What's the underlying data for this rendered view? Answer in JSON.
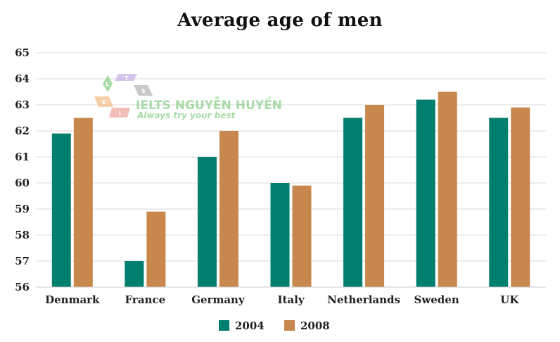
{
  "chart_data": {
    "type": "bar",
    "title": "Average age of men",
    "xlabel": "",
    "ylabel": "",
    "categories": [
      "Denmark",
      "France",
      "Germany",
      "Italy",
      "Netherlands",
      "Sweden",
      "UK"
    ],
    "series": [
      {
        "name": "2004",
        "color": "#007f6e",
        "values": [
          61.9,
          57.0,
          61.0,
          60.0,
          62.5,
          63.2,
          62.5
        ]
      },
      {
        "name": "2008",
        "color": "#c8874d",
        "values": [
          62.5,
          58.9,
          62.0,
          59.9,
          63.0,
          63.5,
          62.9
        ]
      }
    ],
    "ylim": [
      56,
      65
    ],
    "yticks": [
      56,
      57,
      58,
      59,
      60,
      61,
      62,
      63,
      64,
      65
    ],
    "grid": true,
    "legend": "bottom-center"
  },
  "watermark": {
    "brand": "IELTS NGUYỄN HUYỀN",
    "tagline": "Always try your best",
    "letters": [
      "L",
      "T",
      "S",
      "E",
      "I"
    ]
  }
}
